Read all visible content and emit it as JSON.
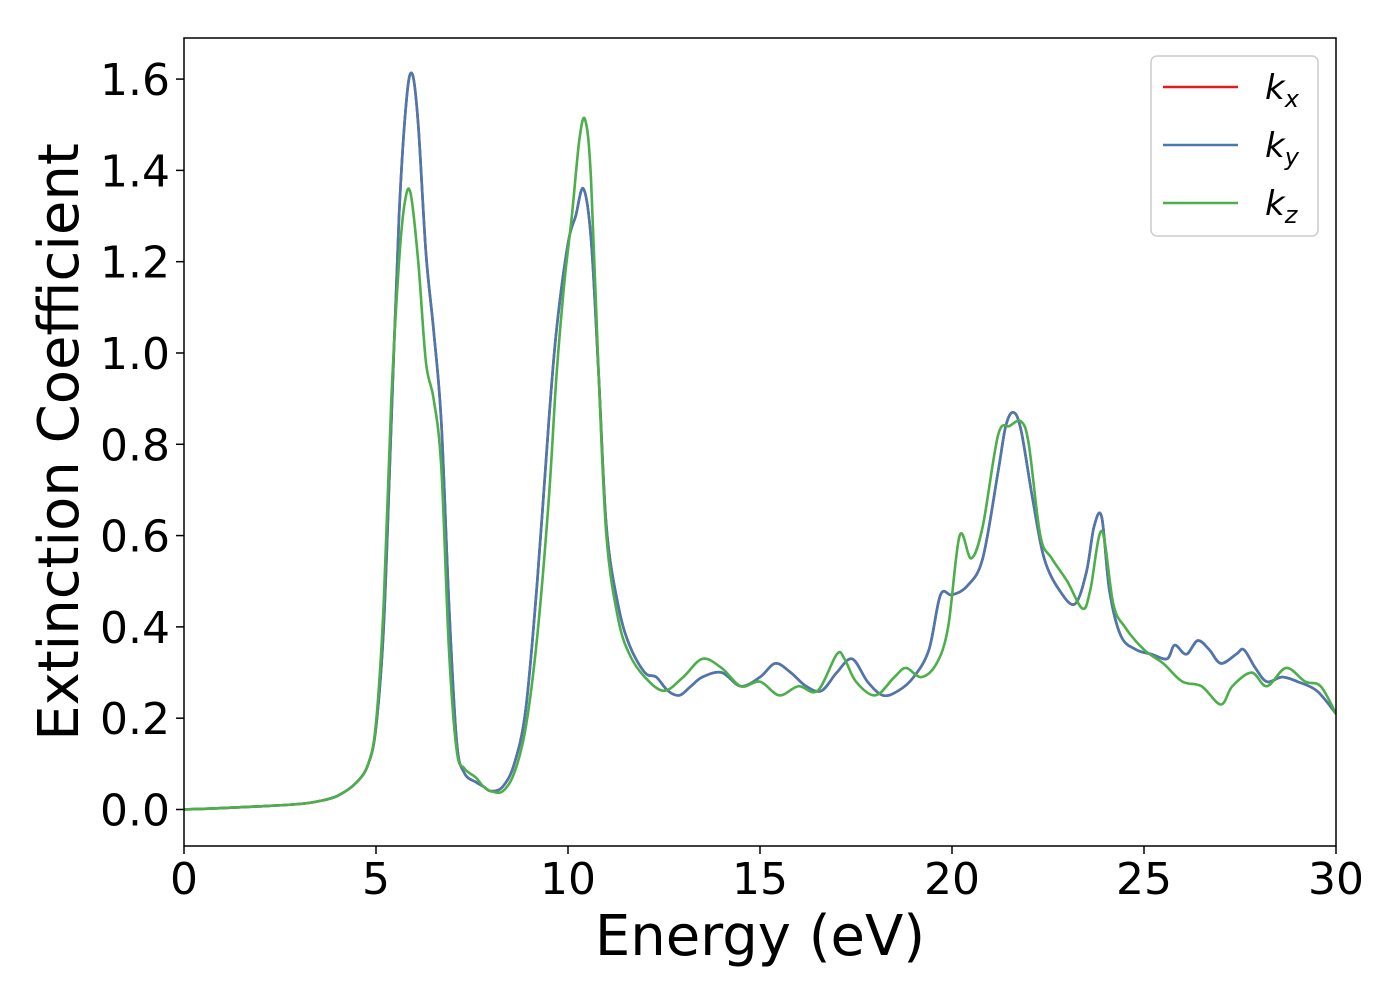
{
  "chart_data": {
    "type": "line",
    "title": "",
    "xlabel": "Energy (eV)",
    "ylabel": "Extinction Coefficient",
    "xlim": [
      0,
      30
    ],
    "ylim": [
      -0.08,
      1.69
    ],
    "xticks": [
      0,
      5,
      10,
      15,
      20,
      25,
      30
    ],
    "xtick_labels": [
      "0",
      "5",
      "10",
      "15",
      "20",
      "25",
      "30"
    ],
    "yticks": [
      0.0,
      0.2,
      0.4,
      0.6,
      0.8,
      1.0,
      1.2,
      1.4,
      1.6
    ],
    "ytick_labels": [
      "0.0",
      "0.2",
      "0.4",
      "0.6",
      "0.8",
      "1.0",
      "1.2",
      "1.4",
      "1.6"
    ],
    "grid": false,
    "legend_position": "top-right",
    "series": [
      {
        "name": "k_x",
        "legend_base": "k",
        "legend_sub": "x",
        "color": "#e41a1c",
        "x": [
          0,
          1,
          2,
          3,
          3.5,
          4,
          4.5,
          4.8,
          5,
          5.2,
          5.4,
          5.6,
          5.8,
          5.95,
          6.1,
          6.3,
          6.5,
          6.7,
          6.9,
          7.1,
          7.3,
          7.6,
          7.8,
          8.0,
          8.3,
          8.6,
          8.9,
          9.2,
          9.5,
          9.7,
          10.0,
          10.2,
          10.4,
          10.6,
          10.8,
          11.0,
          11.3,
          11.6,
          12.0,
          12.3,
          12.6,
          12.9,
          13.2,
          13.5,
          14.0,
          14.5,
          15.0,
          15.4,
          15.8,
          16.2,
          16.6,
          17.0,
          17.4,
          17.8,
          18.2,
          18.6,
          19.0,
          19.4,
          19.7,
          20.0,
          20.4,
          20.8,
          21.2,
          21.4,
          21.6,
          21.8,
          22.1,
          22.4,
          22.8,
          23.2,
          23.5,
          23.7,
          23.9,
          24.1,
          24.4,
          24.8,
          25.2,
          25.6,
          25.8,
          26.1,
          26.4,
          26.7,
          27.0,
          27.4,
          27.6,
          27.9,
          28.2,
          28.6,
          29.0,
          29.5,
          30.0
        ],
        "y": [
          0.0,
          0.003,
          0.007,
          0.012,
          0.018,
          0.03,
          0.06,
          0.1,
          0.18,
          0.4,
          0.85,
          1.3,
          1.56,
          1.61,
          1.5,
          1.22,
          1.05,
          0.85,
          0.45,
          0.15,
          0.08,
          0.06,
          0.05,
          0.04,
          0.05,
          0.1,
          0.22,
          0.5,
          0.85,
          1.05,
          1.24,
          1.3,
          1.36,
          1.25,
          0.95,
          0.62,
          0.45,
          0.36,
          0.3,
          0.29,
          0.26,
          0.25,
          0.27,
          0.29,
          0.3,
          0.27,
          0.29,
          0.32,
          0.3,
          0.27,
          0.26,
          0.3,
          0.33,
          0.28,
          0.25,
          0.26,
          0.29,
          0.35,
          0.47,
          0.47,
          0.49,
          0.55,
          0.74,
          0.84,
          0.87,
          0.83,
          0.68,
          0.55,
          0.48,
          0.45,
          0.52,
          0.62,
          0.64,
          0.48,
          0.38,
          0.35,
          0.34,
          0.33,
          0.36,
          0.34,
          0.37,
          0.35,
          0.32,
          0.34,
          0.35,
          0.31,
          0.28,
          0.29,
          0.28,
          0.26,
          0.21
        ]
      },
      {
        "name": "k_y",
        "legend_base": "k",
        "legend_sub": "y",
        "color": "#4a78b0",
        "x": [
          0,
          1,
          2,
          3,
          3.5,
          4,
          4.5,
          4.8,
          5,
          5.2,
          5.4,
          5.6,
          5.8,
          5.95,
          6.1,
          6.3,
          6.5,
          6.7,
          6.9,
          7.1,
          7.3,
          7.6,
          7.8,
          8.0,
          8.3,
          8.6,
          8.9,
          9.2,
          9.5,
          9.7,
          10.0,
          10.2,
          10.4,
          10.6,
          10.8,
          11.0,
          11.3,
          11.6,
          12.0,
          12.3,
          12.6,
          12.9,
          13.2,
          13.5,
          14.0,
          14.5,
          15.0,
          15.4,
          15.8,
          16.2,
          16.6,
          17.0,
          17.4,
          17.8,
          18.2,
          18.6,
          19.0,
          19.4,
          19.7,
          20.0,
          20.4,
          20.8,
          21.2,
          21.4,
          21.6,
          21.8,
          22.1,
          22.4,
          22.8,
          23.2,
          23.5,
          23.7,
          23.9,
          24.1,
          24.4,
          24.8,
          25.2,
          25.6,
          25.8,
          26.1,
          26.4,
          26.7,
          27.0,
          27.4,
          27.6,
          27.9,
          28.2,
          28.6,
          29.0,
          29.5,
          30.0
        ],
        "y": [
          0.0,
          0.003,
          0.007,
          0.012,
          0.018,
          0.03,
          0.06,
          0.1,
          0.18,
          0.4,
          0.85,
          1.3,
          1.56,
          1.61,
          1.5,
          1.22,
          1.05,
          0.85,
          0.45,
          0.15,
          0.08,
          0.06,
          0.05,
          0.04,
          0.05,
          0.1,
          0.22,
          0.5,
          0.85,
          1.05,
          1.24,
          1.3,
          1.36,
          1.25,
          0.95,
          0.62,
          0.45,
          0.36,
          0.3,
          0.29,
          0.26,
          0.25,
          0.27,
          0.29,
          0.3,
          0.27,
          0.29,
          0.32,
          0.3,
          0.27,
          0.26,
          0.3,
          0.33,
          0.28,
          0.25,
          0.26,
          0.29,
          0.35,
          0.47,
          0.47,
          0.49,
          0.55,
          0.74,
          0.84,
          0.87,
          0.83,
          0.68,
          0.55,
          0.48,
          0.45,
          0.52,
          0.62,
          0.64,
          0.48,
          0.38,
          0.35,
          0.34,
          0.33,
          0.36,
          0.34,
          0.37,
          0.35,
          0.32,
          0.34,
          0.35,
          0.31,
          0.28,
          0.29,
          0.28,
          0.26,
          0.21
        ]
      },
      {
        "name": "k_z",
        "legend_base": "k",
        "legend_sub": "z",
        "color": "#4daf4a",
        "x": [
          0,
          1,
          2,
          3,
          3.5,
          4,
          4.5,
          4.8,
          5,
          5.2,
          5.4,
          5.6,
          5.75,
          5.9,
          6.1,
          6.3,
          6.5,
          6.7,
          6.9,
          7.1,
          7.3,
          7.6,
          7.8,
          8.0,
          8.3,
          8.6,
          8.9,
          9.2,
          9.5,
          9.7,
          9.9,
          10.1,
          10.3,
          10.45,
          10.6,
          10.8,
          11.0,
          11.3,
          11.6,
          12.0,
          12.5,
          13.0,
          13.5,
          14.0,
          14.5,
          15.0,
          15.5,
          16.0,
          16.5,
          17.0,
          17.2,
          17.5,
          18.0,
          18.5,
          18.8,
          19.2,
          19.6,
          19.9,
          20.2,
          20.5,
          20.8,
          21.2,
          21.5,
          21.8,
          22.0,
          22.3,
          22.6,
          23.0,
          23.4,
          23.6,
          23.9,
          24.2,
          24.5,
          25.0,
          25.5,
          26.0,
          26.5,
          27.0,
          27.3,
          27.8,
          28.2,
          28.7,
          29.2,
          29.6,
          30.0
        ],
        "y": [
          0.0,
          0.003,
          0.007,
          0.012,
          0.018,
          0.03,
          0.06,
          0.1,
          0.19,
          0.45,
          0.9,
          1.2,
          1.33,
          1.35,
          1.2,
          0.98,
          0.9,
          0.75,
          0.35,
          0.13,
          0.09,
          0.07,
          0.05,
          0.04,
          0.04,
          0.08,
          0.18,
          0.38,
          0.68,
          0.95,
          1.15,
          1.3,
          1.47,
          1.51,
          1.38,
          0.95,
          0.6,
          0.42,
          0.34,
          0.29,
          0.26,
          0.29,
          0.33,
          0.31,
          0.27,
          0.28,
          0.25,
          0.27,
          0.26,
          0.34,
          0.33,
          0.28,
          0.25,
          0.29,
          0.31,
          0.29,
          0.32,
          0.4,
          0.6,
          0.55,
          0.62,
          0.82,
          0.84,
          0.85,
          0.8,
          0.6,
          0.55,
          0.5,
          0.44,
          0.48,
          0.61,
          0.45,
          0.4,
          0.35,
          0.32,
          0.28,
          0.27,
          0.23,
          0.27,
          0.3,
          0.27,
          0.31,
          0.28,
          0.27,
          0.21
        ]
      }
    ]
  }
}
